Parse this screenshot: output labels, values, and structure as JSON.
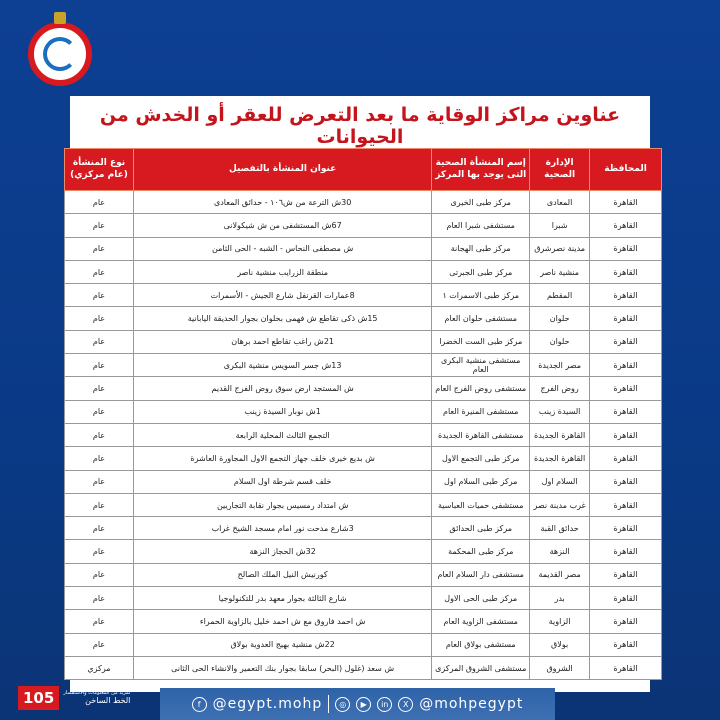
{
  "title": "عناوين مراكز الوقاية ما بعد التعرض للعقر أو الخدش من الحيوانات",
  "colors": {
    "accent": "#d71920",
    "background": "#0d3f93"
  },
  "table": {
    "headers": [
      "المحافظة",
      "الإدارة الصحية",
      "إسم المنشأة الصحية التى يوجد بها المركز",
      "عنوان المنشأة بالتفصيل",
      "نوع المنشأة (عام مركزي)"
    ],
    "rows": [
      [
        "القاهرة",
        "المعادى",
        "مركز طبى الخيرى",
        "30ش الترعة من ش١٠٦ - حدائق المعادى",
        "عام"
      ],
      [
        "القاهرة",
        "شبرا",
        "مستشفى شبرا العام",
        "67ش المستشفى من ش شيكولانى",
        "عام"
      ],
      [
        "القاهرة",
        "مدينة نصرشرق",
        "مركز طبى الهجانة",
        "ش مصطفى النحاس - الشبه - الحى الثامن",
        "عام"
      ],
      [
        "القاهرة",
        "منشية ناصر",
        "مركز طبى الجبرتى",
        "منطقة الزرايب منشية ناصر",
        "عام"
      ],
      [
        "القاهرة",
        "المقطم",
        "مركز طبى الاسمرات ١",
        "8عمارات القرنفل شارع الجيش - الأسمرات",
        "عام"
      ],
      [
        "القاهرة",
        "حلوان",
        "مستشفى حلوان العام",
        "15ش ذكى تقاطع ش فهمى بحلوان بجوار الحديقة اليابانية",
        "عام"
      ],
      [
        "القاهرة",
        "حلوان",
        "مركز طبى الست الخضرا",
        "21ش راغب تقاطع احمد برهان",
        "عام"
      ],
      [
        "القاهرة",
        "مصر الجديدة",
        "مستشفى منشية البكرى العام",
        "13ش جسر السويس منشية البكرى",
        "عام"
      ],
      [
        "القاهرة",
        "روض الفرج",
        "مستشفى روض الفرج العام",
        "ش المستجد ارض سوق روض الفرج القديم",
        "عام"
      ],
      [
        "القاهرة",
        "السيدة زينب",
        "مستشفى المنيرة العام",
        "1ش نوبار السيدة زينب",
        "عام"
      ],
      [
        "القاهرة",
        "القاهرة الجديدة",
        "مستشفى القاهرة الجديدة",
        "التجمع الثالث المحلية الرابعة",
        "عام"
      ],
      [
        "القاهرة",
        "القاهرة الجديدة",
        "مركز طبى التجمع الاول",
        "ش بديع خيرى خلف جهاز التجمع الاول المجاورة العاشرة",
        "عام"
      ],
      [
        "القاهرة",
        "السلام اول",
        "مركز طبى السلام اول",
        "خلف قسم شرطة اول السلام",
        "عام"
      ],
      [
        "القاهرة",
        "غرب مدينة نصر",
        "مستشفى حميات العباسية",
        "ش امتداد رمسيس بجوار نقابة التجاريين",
        "عام"
      ],
      [
        "القاهرة",
        "حدائق القبة",
        "مركز طبى الحدائق",
        "3شارع مدحت نور امام مسجد الشيخ غراب",
        "عام"
      ],
      [
        "القاهرة",
        "النزهة",
        "مركز طبى المحكمة",
        "32ش الحجاز النزهة",
        "عام"
      ],
      [
        "القاهرة",
        "مصر القديمة",
        "مستشفى دار السلام العام",
        "كورنيش النيل الملك الصالح",
        "عام"
      ],
      [
        "القاهرة",
        "بدر",
        "مركز طبى الحى الاول",
        "شارع الثالثة بجوار معهد بدر للتكنولوجيا",
        "عام"
      ],
      [
        "القاهرة",
        "الزاوية",
        "مستشفى الزاوية العام",
        "ش احمد فاروق مع ش احمد خليل بالزاوية الحمراء",
        "عام"
      ],
      [
        "القاهرة",
        "بولاق",
        "مستشفى بولاق العام",
        "22ش منشية بهيج العدوية بولاق",
        "عام"
      ],
      [
        "القاهرة",
        "الشروق",
        "مستشفى الشروق المركزى",
        "ش سعد (غلول (البحر) سابقا بجوار بنك التعمير والانشاء الحى الثانى",
        "مركزي"
      ]
    ]
  },
  "footer": {
    "facebook": "@egypt.mohp",
    "social": "@mohpegypt",
    "hotline_number": "105",
    "hotline_label": "الخط الساخن",
    "hotline_sub": "لمزيد من المعلومات والاستفسار"
  },
  "icons": [
    "facebook-icon",
    "instagram-icon",
    "youtube-icon",
    "linkedin-icon",
    "x-icon"
  ]
}
